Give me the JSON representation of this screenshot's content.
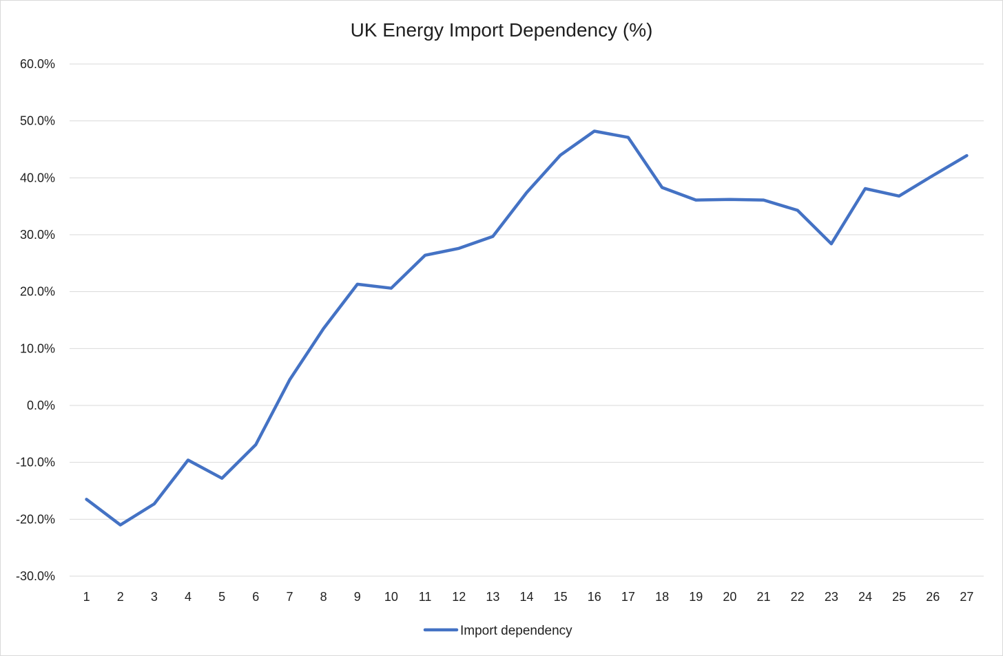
{
  "chart_data": {
    "type": "line",
    "title": "UK Energy Import Dependency (%)",
    "xlabel": "",
    "ylabel": "",
    "x": [
      1,
      2,
      3,
      4,
      5,
      6,
      7,
      8,
      9,
      10,
      11,
      12,
      13,
      14,
      15,
      16,
      17,
      18,
      19,
      20,
      21,
      22,
      23,
      24,
      25,
      26,
      27
    ],
    "y_tick_labels": [
      "60.0%",
      "50.0%",
      "40.0%",
      "30.0%",
      "20.0%",
      "10.0%",
      "0.0%",
      "-10.0%",
      "-20.0%",
      "-30.0%"
    ],
    "y_ticks": [
      60,
      50,
      40,
      30,
      20,
      10,
      0,
      -10,
      -20,
      -30
    ],
    "ylim": [
      -30,
      60
    ],
    "grid": true,
    "legend_position": "bottom",
    "series": [
      {
        "name": "Import dependency",
        "color": "#4472c4",
        "values": [
          -16.5,
          -21.0,
          -17.3,
          -9.6,
          -12.8,
          -6.9,
          4.5,
          13.5,
          21.3,
          20.6,
          26.4,
          27.6,
          29.7,
          37.4,
          44.0,
          48.2,
          47.1,
          38.3,
          36.1,
          36.2,
          36.1,
          34.3,
          28.4,
          38.1,
          36.8,
          40.4,
          43.9
        ]
      }
    ]
  }
}
